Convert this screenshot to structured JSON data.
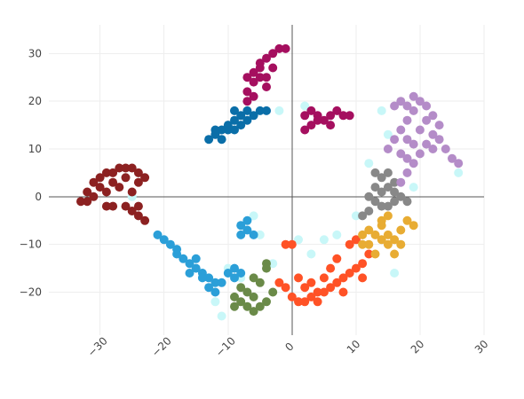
{
  "chart_data": {
    "type": "scatter",
    "title": "",
    "xlabel": "",
    "ylabel": "",
    "xlim": [
      -38,
      30
    ],
    "ylim": [
      -29,
      36
    ],
    "grid": true,
    "x_ticks": [
      -30,
      -20,
      -10,
      0,
      10,
      20,
      30
    ],
    "x_tick_labels": [
      "−30",
      "−20",
      "−10",
      "0",
      "10",
      "20",
      "30"
    ],
    "y_ticks": [
      -20,
      -10,
      0,
      10,
      20,
      30
    ],
    "y_tick_labels": [
      "−20",
      "−10",
      "0",
      "10",
      "20",
      "30"
    ],
    "series": [
      {
        "color": "#C8F7F8",
        "points": [
          [
            -25,
            0
          ],
          [
            -21,
            -8
          ],
          [
            -12,
            -22
          ],
          [
            -11,
            -25
          ],
          [
            -8,
            -17
          ],
          [
            -5,
            -8
          ],
          [
            -3,
            -14
          ],
          [
            1,
            -9
          ],
          [
            3,
            -12
          ],
          [
            5,
            -9
          ],
          [
            7,
            -8
          ],
          [
            10,
            -4
          ],
          [
            12,
            7
          ],
          [
            15,
            13
          ],
          [
            14,
            18
          ],
          [
            16,
            -16
          ],
          [
            17,
            -10
          ],
          [
            19,
            2
          ],
          [
            26,
            5
          ],
          [
            2,
            19
          ],
          [
            -2,
            18
          ],
          [
            -10,
            -15
          ],
          [
            -15,
            -15
          ],
          [
            0,
            -21
          ],
          [
            -6,
            -4
          ]
        ]
      },
      {
        "color": "#A50F5F",
        "points": [
          [
            -7,
            22
          ],
          [
            -6,
            24
          ],
          [
            -5,
            27
          ],
          [
            -4,
            29
          ],
          [
            -3,
            30
          ],
          [
            -2,
            31
          ],
          [
            -1,
            31
          ],
          [
            -6,
            26
          ],
          [
            -5,
            25
          ],
          [
            -7,
            25
          ],
          [
            -4,
            23
          ],
          [
            -6,
            21
          ],
          [
            -5,
            28
          ],
          [
            -3,
            27
          ],
          [
            -7,
            20
          ],
          [
            -4,
            25
          ],
          [
            2,
            17
          ],
          [
            3,
            18
          ],
          [
            4,
            17
          ],
          [
            5,
            16
          ],
          [
            6,
            17
          ],
          [
            7,
            18
          ],
          [
            8,
            17
          ],
          [
            9,
            17
          ],
          [
            3,
            15
          ],
          [
            4,
            16
          ],
          [
            6,
            15
          ],
          [
            2,
            14
          ]
        ]
      },
      {
        "color": "#0A6EA8",
        "points": [
          [
            -13,
            12
          ],
          [
            -12,
            13
          ],
          [
            -11,
            14
          ],
          [
            -10,
            15
          ],
          [
            -9,
            16
          ],
          [
            -8,
            17
          ],
          [
            -7,
            18
          ],
          [
            -11,
            12
          ],
          [
            -10,
            14
          ],
          [
            -9,
            14
          ],
          [
            -8,
            15
          ],
          [
            -12,
            14
          ],
          [
            -7,
            16
          ],
          [
            -6,
            17
          ],
          [
            -5,
            18
          ],
          [
            -4,
            18
          ],
          [
            -9,
            18
          ]
        ]
      },
      {
        "color": "#8C2121",
        "points": [
          [
            -33,
            -1
          ],
          [
            -32,
            1
          ],
          [
            -31,
            3
          ],
          [
            -30,
            4
          ],
          [
            -29,
            5
          ],
          [
            -28,
            5
          ],
          [
            -27,
            6
          ],
          [
            -26,
            6
          ],
          [
            -25,
            6
          ],
          [
            -24,
            5
          ],
          [
            -23,
            4
          ],
          [
            -24,
            3
          ],
          [
            -26,
            4
          ],
          [
            -28,
            3
          ],
          [
            -30,
            2
          ],
          [
            -31,
            0
          ],
          [
            -29,
            -2
          ],
          [
            -28,
            -2
          ],
          [
            -26,
            -2
          ],
          [
            -25,
            -3
          ],
          [
            -24,
            -4
          ],
          [
            -23,
            -5
          ],
          [
            -24,
            -2
          ],
          [
            -32,
            -1
          ],
          [
            -29,
            1
          ],
          [
            -27,
            2
          ],
          [
            -25,
            1
          ]
        ]
      },
      {
        "color": "#2B9FD8",
        "points": [
          [
            -21,
            -8
          ],
          [
            -20,
            -9
          ],
          [
            -19,
            -10
          ],
          [
            -18,
            -12
          ],
          [
            -17,
            -13
          ],
          [
            -16,
            -14
          ],
          [
            -15,
            -15
          ],
          [
            -14,
            -16
          ],
          [
            -13,
            -17
          ],
          [
            -12,
            -18
          ],
          [
            -11,
            -18
          ],
          [
            -10,
            -16
          ],
          [
            -9,
            -15
          ],
          [
            -8,
            -16
          ],
          [
            -13,
            -19
          ],
          [
            -14,
            -17
          ],
          [
            -16,
            -16
          ],
          [
            -18,
            -11
          ],
          [
            -9,
            -17
          ],
          [
            -8,
            -6
          ],
          [
            -7,
            -7
          ],
          [
            -6,
            -8
          ],
          [
            -8,
            -8
          ],
          [
            -7,
            -5
          ],
          [
            -12,
            -20
          ],
          [
            -15,
            -13
          ]
        ]
      },
      {
        "color": "#6A8A48",
        "points": [
          [
            -9,
            -21
          ],
          [
            -8,
            -22
          ],
          [
            -7,
            -23
          ],
          [
            -6,
            -24
          ],
          [
            -5,
            -23
          ],
          [
            -4,
            -22
          ],
          [
            -7,
            -20
          ],
          [
            -6,
            -21
          ],
          [
            -8,
            -19
          ],
          [
            -5,
            -18
          ],
          [
            -4,
            -15
          ],
          [
            -6,
            -17
          ],
          [
            -3,
            -20
          ],
          [
            -4,
            -14
          ],
          [
            -9,
            -23
          ]
        ]
      },
      {
        "color": "#FF5226",
        "points": [
          [
            -1,
            -19
          ],
          [
            0,
            -21
          ],
          [
            1,
            -22
          ],
          [
            2,
            -22
          ],
          [
            3,
            -21
          ],
          [
            4,
            -20
          ],
          [
            5,
            -20
          ],
          [
            6,
            -19
          ],
          [
            7,
            -18
          ],
          [
            8,
            -17
          ],
          [
            9,
            -16
          ],
          [
            10,
            -15
          ],
          [
            11,
            -14
          ],
          [
            3,
            -18
          ],
          [
            2,
            -19
          ],
          [
            -2,
            -18
          ],
          [
            -1,
            -10
          ],
          [
            0,
            -10
          ],
          [
            9,
            -10
          ],
          [
            10,
            -9
          ],
          [
            7,
            -13
          ],
          [
            6,
            -15
          ],
          [
            5,
            -17
          ],
          [
            8,
            -20
          ],
          [
            11,
            -17
          ],
          [
            1,
            -17
          ],
          [
            4,
            -22
          ],
          [
            12,
            -12
          ]
        ]
      },
      {
        "color": "#E8AC33",
        "points": [
          [
            11,
            -8
          ],
          [
            12,
            -7
          ],
          [
            13,
            -8
          ],
          [
            14,
            -9
          ],
          [
            15,
            -10
          ],
          [
            16,
            -9
          ],
          [
            17,
            -7
          ],
          [
            18,
            -5
          ],
          [
            15,
            -4
          ],
          [
            14,
            -6
          ],
          [
            16,
            -12
          ],
          [
            13,
            -12
          ],
          [
            12,
            -10
          ],
          [
            15,
            -8
          ],
          [
            17,
            -10
          ],
          [
            19,
            -6
          ],
          [
            14,
            -5
          ],
          [
            11,
            -10
          ]
        ]
      },
      {
        "color": "#888888",
        "points": [
          [
            11,
            -4
          ],
          [
            12,
            -3
          ],
          [
            13,
            -1
          ],
          [
            14,
            1
          ],
          [
            15,
            2
          ],
          [
            16,
            1
          ],
          [
            17,
            0
          ],
          [
            18,
            -1
          ],
          [
            14,
            4
          ],
          [
            13,
            5
          ],
          [
            15,
            5
          ],
          [
            16,
            -1
          ],
          [
            14,
            -2
          ],
          [
            12,
            0
          ],
          [
            13,
            2
          ],
          [
            16,
            3
          ],
          [
            15,
            -2
          ]
        ]
      },
      {
        "color": "#B48CC8",
        "points": [
          [
            15,
            10
          ],
          [
            16,
            12
          ],
          [
            17,
            14
          ],
          [
            18,
            16
          ],
          [
            19,
            18
          ],
          [
            20,
            20
          ],
          [
            21,
            19
          ],
          [
            22,
            17
          ],
          [
            23,
            15
          ],
          [
            22,
            13
          ],
          [
            21,
            11
          ],
          [
            20,
            9
          ],
          [
            19,
            7
          ],
          [
            18,
            5
          ],
          [
            17,
            3
          ],
          [
            24,
            10
          ],
          [
            25,
            8
          ],
          [
            26,
            7
          ],
          [
            18,
            19
          ],
          [
            17,
            20
          ],
          [
            19,
            21
          ],
          [
            16,
            19
          ],
          [
            20,
            14
          ],
          [
            18,
            12
          ],
          [
            17,
            9
          ],
          [
            21,
            16
          ],
          [
            22,
            10
          ],
          [
            23,
            12
          ],
          [
            19,
            11
          ],
          [
            18,
            8
          ]
        ]
      }
    ]
  }
}
